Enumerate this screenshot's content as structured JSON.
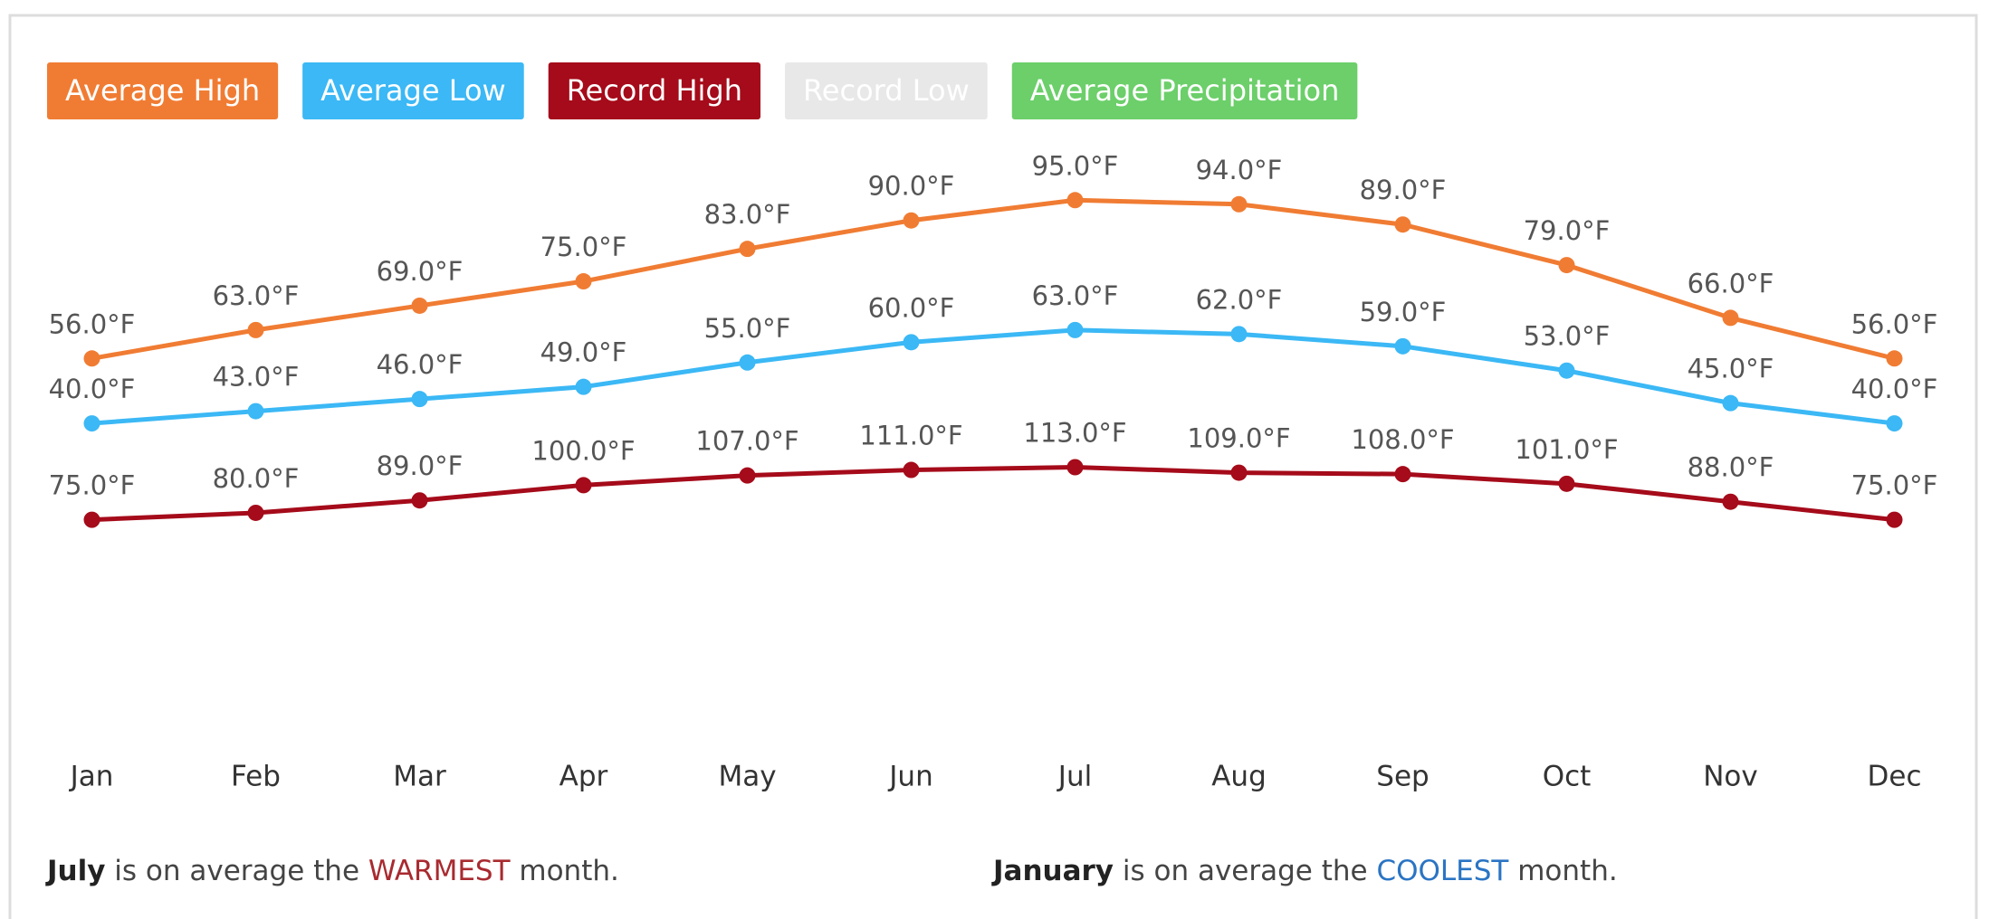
{
  "chart_data": {
    "type": "line",
    "categories": [
      "Jan",
      "Feb",
      "Mar",
      "Apr",
      "May",
      "Jun",
      "Jul",
      "Aug",
      "Sep",
      "Oct",
      "Nov",
      "Dec"
    ],
    "ylim": [
      -40,
      110
    ],
    "y2lim": [
      -90,
      350
    ],
    "series": [
      {
        "name": "Average High",
        "color": "#f07c33",
        "values": [
          56,
          63,
          69,
          75,
          83,
          90,
          95,
          94,
          89,
          79,
          66,
          56
        ],
        "value_labels": [
          "56.0°F",
          "63.0°F",
          "69.0°F",
          "75.0°F",
          "83.0°F",
          "90.0°F",
          "95.0°F",
          "94.0°F",
          "89.0°F",
          "79.0°F",
          "66.0°F",
          "56.0°F"
        ]
      },
      {
        "name": "Average Low",
        "color": "#3bb8f5",
        "values": [
          40,
          43,
          46,
          49,
          55,
          60,
          63,
          62,
          59,
          53,
          45,
          40
        ],
        "value_labels": [
          "40.0°F",
          "43.0°F",
          "46.0°F",
          "49.0°F",
          "55.0°F",
          "60.0°F",
          "63.0°F",
          "62.0°F",
          "59.0°F",
          "53.0°F",
          "45.0°F",
          "40.0°F"
        ]
      },
      {
        "name": "Record High",
        "color": "#a50b1a",
        "axis": "y2",
        "values": [
          75,
          80,
          89,
          100,
          107,
          111,
          113,
          109,
          108,
          101,
          88,
          75
        ],
        "value_labels": [
          "75.0°F",
          "80.0°F",
          "89.0°F",
          "100.0°F",
          "107.0°F",
          "111.0°F",
          "113.0°F",
          "109.0°F",
          "108.0°F",
          "101.0°F",
          "88.0°F",
          "75.0°F"
        ]
      }
    ],
    "hidden_series": [
      {
        "name": "Record Low",
        "color": "#e8e8e8"
      },
      {
        "name": "Average Precipitation",
        "color": "#6ccf6a"
      }
    ]
  },
  "notes": [
    [
      "July",
      " is on average the ",
      "WARMEST",
      " month."
    ],
    [
      "January",
      " is on average the ",
      "COOLEST",
      " month."
    ]
  ]
}
